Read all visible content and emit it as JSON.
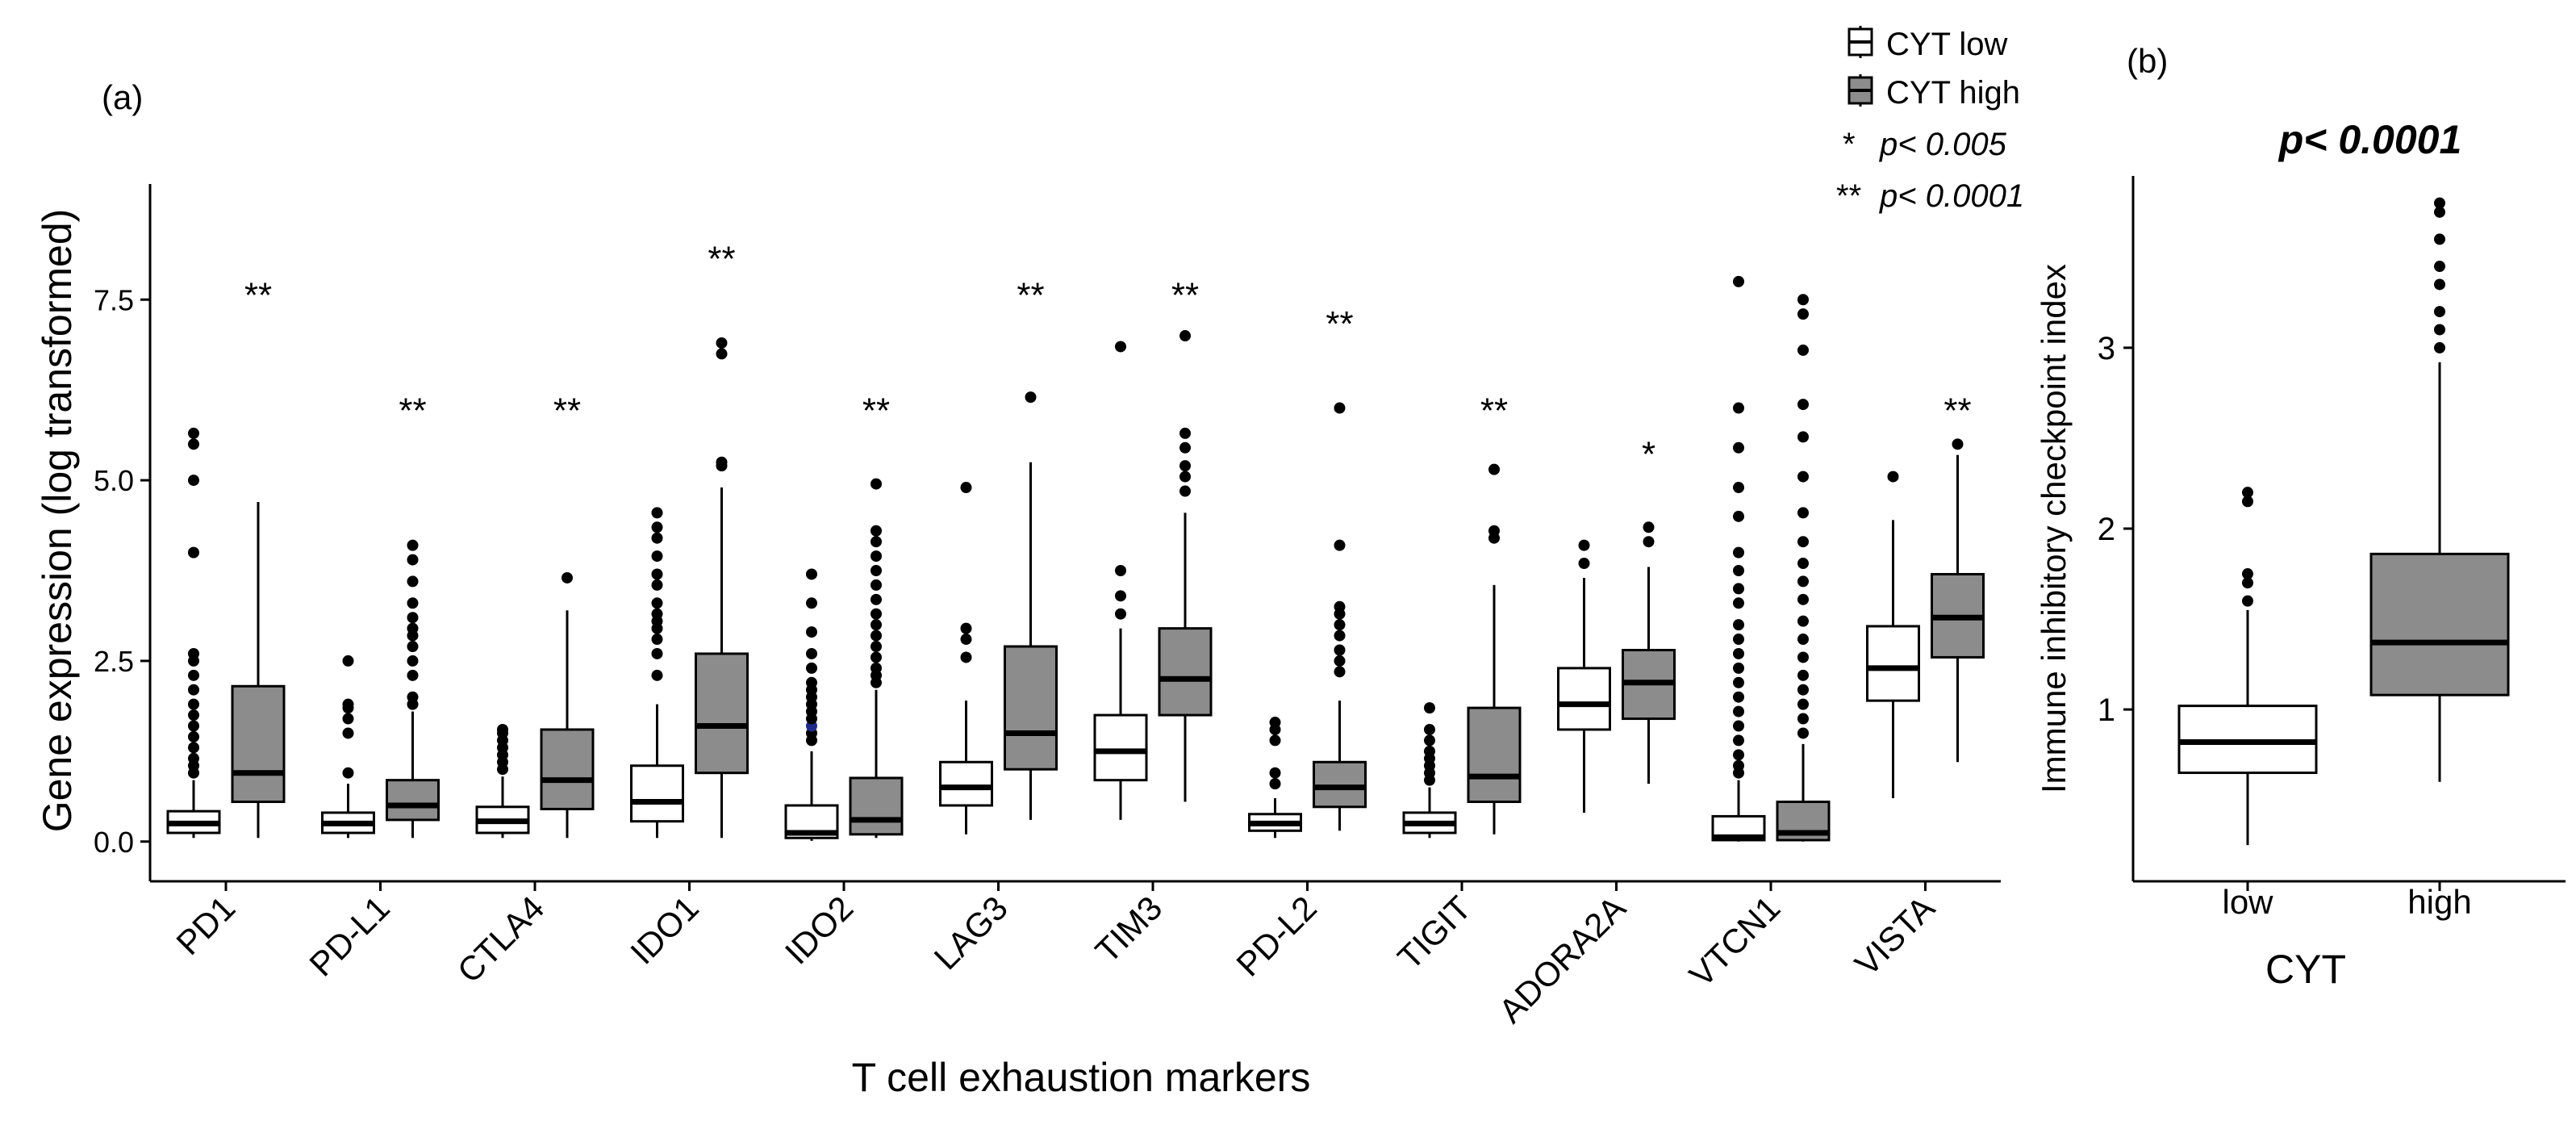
{
  "panel_a_label": "(a)",
  "panel_b_label": "(b)",
  "legend": {
    "low_label": "CYT low",
    "high_label": "CYT high",
    "sig1_symbol": "*",
    "sig1_text": "p< 0.005",
    "sig2_symbol": "**",
    "sig2_text": "p< 0.0001"
  },
  "colors": {
    "low_fill": "#ffffff",
    "high_fill": "#8c8c8c",
    "highlight_point": "#1f2a8c"
  },
  "chart_data": [
    {
      "type": "boxplot",
      "title": "",
      "xlabel": "T cell exhaustion markers",
      "ylabel": "Gene expression (log transformed)",
      "ylim": [
        -0.55,
        9.1
      ],
      "yticks": [
        0,
        2.5,
        5,
        7.5
      ],
      "ytick_labels": [
        "0.0",
        "2.5",
        "5.0",
        "7.5"
      ],
      "categories": [
        "PD1",
        "PD-L1",
        "CTLA4",
        "IDO1",
        "IDO2",
        "LAG3",
        "TIM3",
        "PD-L2",
        "TIGIT",
        "ADORA2A",
        "VTCN1",
        "VISTA"
      ],
      "significance": [
        "**",
        "**",
        "**",
        "**",
        "**",
        "**",
        "**",
        "**",
        "**",
        "*",
        "",
        "**"
      ],
      "significance_y": [
        7.6,
        6.0,
        6.0,
        8.1,
        6.0,
        7.6,
        7.6,
        7.2,
        6.0,
        5.4,
        null,
        6.0
      ],
      "series": [
        {
          "name": "CYT low",
          "boxes": [
            {
              "wlo": 0.05,
              "q1": 0.12,
              "med": 0.25,
              "q3": 0.42,
              "whi": 0.85,
              "outliers": [
                0.95,
                1.05,
                1.15,
                1.3,
                1.45,
                1.6,
                1.75,
                1.9,
                2.1,
                2.3,
                2.5,
                2.6,
                4.0,
                5.0,
                5.5,
                5.65
              ]
            },
            {
              "wlo": 0.05,
              "q1": 0.12,
              "med": 0.25,
              "q3": 0.4,
              "whi": 0.8,
              "outliers": [
                0.95,
                1.5,
                1.7,
                1.85,
                1.9,
                2.5
              ]
            },
            {
              "wlo": 0.05,
              "q1": 0.12,
              "med": 0.28,
              "q3": 0.48,
              "whi": 0.9,
              "outliers": [
                1.0,
                1.1,
                1.2,
                1.3,
                1.4,
                1.5,
                1.55
              ]
            },
            {
              "wlo": 0.05,
              "q1": 0.28,
              "med": 0.55,
              "q3": 1.05,
              "whi": 1.9,
              "outliers": [
                2.3,
                2.6,
                2.8,
                2.95,
                3.05,
                3.15,
                3.3,
                3.55,
                3.7,
                3.95,
                4.2,
                4.35,
                4.55
              ]
            },
            {
              "wlo": 0.01,
              "q1": 0.05,
              "med": 0.12,
              "q3": 0.5,
              "whi": 1.25,
              "outliers": [
                1.4,
                1.5,
                1.6,
                1.7,
                1.8,
                1.9,
                2.0,
                2.1,
                2.2,
                2.4,
                2.6,
                2.9,
                3.3,
                3.7
              ],
              "highlight": [
                1.6
              ]
            },
            {
              "wlo": 0.1,
              "q1": 0.5,
              "med": 0.75,
              "q3": 1.1,
              "whi": 1.95,
              "outliers": [
                2.55,
                2.8,
                2.95,
                4.9
              ]
            },
            {
              "wlo": 0.3,
              "q1": 0.85,
              "med": 1.25,
              "q3": 1.75,
              "whi": 2.95,
              "outliers": [
                3.15,
                3.4,
                3.75,
                6.85
              ]
            },
            {
              "wlo": 0.05,
              "q1": 0.15,
              "med": 0.25,
              "q3": 0.38,
              "whi": 0.6,
              "outliers": [
                0.8,
                0.95,
                1.4,
                1.55,
                1.65
              ]
            },
            {
              "wlo": 0.05,
              "q1": 0.12,
              "med": 0.25,
              "q3": 0.4,
              "whi": 0.75,
              "outliers": [
                0.85,
                0.95,
                1.05,
                1.15,
                1.25,
                1.4,
                1.55,
                1.85
              ],
              "highlight": [
                0.9,
                1.2
              ]
            },
            {
              "wlo": 0.4,
              "q1": 1.55,
              "med": 1.9,
              "q3": 2.4,
              "whi": 3.65,
              "outliers": [
                3.85,
                4.1
              ]
            },
            {
              "wlo": 0.0,
              "q1": 0.02,
              "med": 0.06,
              "q3": 0.35,
              "whi": 0.85,
              "outliers": [
                0.95,
                1.05,
                1.2,
                1.4,
                1.6,
                1.8,
                2.0,
                2.2,
                2.4,
                2.6,
                2.8,
                3.0,
                3.3,
                3.5,
                3.75,
                4.0,
                4.5,
                4.9,
                5.45,
                6.0,
                7.75
              ]
            },
            {
              "wlo": 0.6,
              "q1": 1.95,
              "med": 2.4,
              "q3": 2.98,
              "whi": 4.45,
              "outliers": [
                5.05
              ]
            }
          ]
        },
        {
          "name": "CYT high",
          "boxes": [
            {
              "wlo": 0.05,
              "q1": 0.55,
              "med": 0.95,
              "q3": 2.15,
              "whi": 4.7,
              "outliers": []
            },
            {
              "wlo": 0.05,
              "q1": 0.3,
              "med": 0.5,
              "q3": 0.85,
              "whi": 1.8,
              "outliers": [
                1.9,
                2.0,
                2.3,
                2.5,
                2.7,
                2.85,
                2.95,
                3.1,
                3.3,
                3.6,
                3.9,
                4.1
              ]
            },
            {
              "wlo": 0.05,
              "q1": 0.45,
              "med": 0.85,
              "q3": 1.55,
              "whi": 3.2,
              "outliers": [
                3.65
              ]
            },
            {
              "wlo": 0.05,
              "q1": 0.95,
              "med": 1.6,
              "q3": 2.6,
              "whi": 4.9,
              "outliers": [
                5.2,
                5.25,
                6.75,
                6.9
              ]
            },
            {
              "wlo": 0.05,
              "q1": 0.1,
              "med": 0.3,
              "q3": 0.88,
              "whi": 2.1,
              "outliers": [
                2.2,
                2.3,
                2.4,
                2.55,
                2.7,
                2.85,
                3.0,
                3.15,
                3.35,
                3.55,
                3.75,
                3.95,
                4.15,
                4.3,
                4.95
              ]
            },
            {
              "wlo": 0.3,
              "q1": 1.0,
              "med": 1.5,
              "q3": 2.7,
              "whi": 5.25,
              "outliers": [
                6.15
              ]
            },
            {
              "wlo": 0.55,
              "q1": 1.75,
              "med": 2.25,
              "q3": 2.95,
              "whi": 4.55,
              "outliers": [
                4.85,
                5.05,
                5.2,
                5.45,
                5.65,
                7.0
              ]
            },
            {
              "wlo": 0.15,
              "q1": 0.48,
              "med": 0.75,
              "q3": 1.1,
              "whi": 1.95,
              "outliers": [
                2.35,
                2.5,
                2.65,
                2.85,
                3.0,
                3.15,
                3.25,
                4.1,
                6.0
              ]
            },
            {
              "wlo": 0.1,
              "q1": 0.55,
              "med": 0.9,
              "q3": 1.85,
              "whi": 3.55,
              "outliers": [
                4.2,
                4.3,
                5.15
              ]
            },
            {
              "wlo": 0.8,
              "q1": 1.7,
              "med": 2.2,
              "q3": 2.65,
              "whi": 3.8,
              "outliers": [
                4.15,
                4.35
              ]
            },
            {
              "wlo": 0.0,
              "q1": 0.02,
              "med": 0.12,
              "q3": 0.55,
              "whi": 1.35,
              "outliers": [
                1.5,
                1.7,
                1.9,
                2.1,
                2.3,
                2.55,
                2.8,
                3.05,
                3.35,
                3.6,
                3.85,
                4.15,
                4.55,
                5.05,
                5.6,
                6.05,
                6.8,
                7.3,
                7.5
              ]
            },
            {
              "wlo": 1.1,
              "q1": 2.55,
              "med": 3.1,
              "q3": 3.7,
              "whi": 5.35,
              "outliers": [
                5.5
              ]
            }
          ]
        }
      ]
    },
    {
      "type": "boxplot",
      "title": "p< 0.0001",
      "xlabel": "CYT",
      "ylabel": "Immune inhibitory checkpoint index",
      "ylim": [
        0.05,
        3.95
      ],
      "yticks": [
        1,
        2,
        3
      ],
      "ytick_labels": [
        "1",
        "2",
        "3"
      ],
      "categories": [
        "low",
        "high"
      ],
      "boxes": [
        {
          "wlo": 0.25,
          "q1": 0.65,
          "med": 0.82,
          "q3": 1.02,
          "whi": 1.55,
          "outliers": [
            1.6,
            1.7,
            1.75,
            2.15,
            2.2
          ]
        },
        {
          "wlo": 0.6,
          "q1": 1.08,
          "med": 1.37,
          "q3": 1.86,
          "whi": 2.92,
          "outliers": [
            3.0,
            3.1,
            3.2,
            3.35,
            3.45,
            3.6,
            3.75,
            3.8
          ]
        }
      ]
    }
  ]
}
